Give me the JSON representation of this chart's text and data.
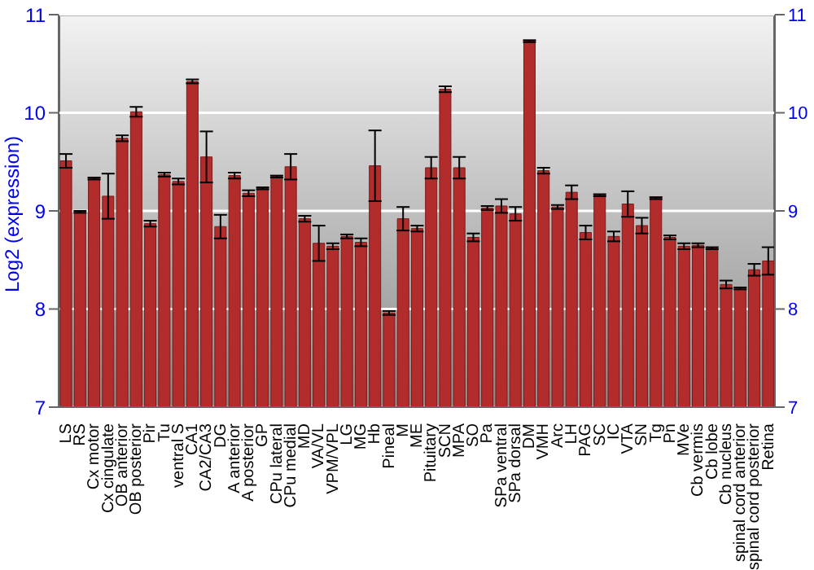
{
  "chart_data": {
    "type": "bar",
    "ylabel": "Log2 (expression)",
    "categories": [
      "LS",
      "RS",
      "Cx motor",
      "Cx cingulate",
      "OB anterior",
      "OB posterior",
      "Pir",
      "Tu",
      "ventral S",
      "CA1",
      "CA2/CA3",
      "DG",
      "A anterior",
      "A posterior",
      "GP",
      "CPu lateral",
      "CPu medial",
      "MD",
      "VA/VL",
      "VPM/VPL",
      "LG",
      "MG",
      "Hb",
      "Pineal",
      "M",
      "ME",
      "Pituitary",
      "SCN",
      "MPA",
      "SO",
      "Pa",
      "SPa ventral",
      "SPa dorsal",
      "DM",
      "VMH",
      "Arc",
      "LH",
      "PAG",
      "SC",
      "IC",
      "VTA",
      "SN",
      "Tg",
      "Pn",
      "MVe",
      "Cb vermis",
      "Cb lobe",
      "Cb nucleus",
      "spinal cord anterior",
      "spinal cord posterior",
      "Retina"
    ],
    "series": [
      {
        "color": "#b22c2c",
        "values": [
          9.51,
          8.99,
          9.33,
          9.15,
          9.74,
          10.01,
          8.87,
          9.37,
          9.3,
          10.32,
          9.55,
          8.84,
          9.36,
          9.18,
          9.23,
          9.35,
          9.45,
          8.92,
          8.67,
          8.64,
          8.74,
          8.68,
          9.46,
          7.96,
          8.92,
          8.82,
          9.44,
          10.24,
          9.44,
          8.73,
          9.03,
          9.05,
          8.97,
          10.73,
          9.41,
          9.04,
          9.19,
          8.78,
          9.16,
          8.74,
          9.07,
          8.85,
          9.13,
          8.73,
          8.64,
          8.65,
          8.62,
          8.25,
          8.21,
          8.4,
          8.49
        ],
        "errors": [
          0.07,
          0.01,
          0.01,
          0.23,
          0.03,
          0.05,
          0.03,
          0.02,
          0.03,
          0.02,
          0.26,
          0.12,
          0.03,
          0.03,
          0.01,
          0.01,
          0.13,
          0.03,
          0.18,
          0.03,
          0.02,
          0.04,
          0.36,
          0.02,
          0.12,
          0.03,
          0.11,
          0.03,
          0.11,
          0.04,
          0.02,
          0.07,
          0.07,
          0.01,
          0.03,
          0.02,
          0.07,
          0.07,
          0.01,
          0.05,
          0.13,
          0.08,
          0.01,
          0.02,
          0.03,
          0.02,
          0.01,
          0.04,
          0.01,
          0.06,
          0.14
        ]
      }
    ],
    "ylim": [
      7,
      11
    ],
    "yticks": [
      7,
      8,
      9,
      10,
      11
    ],
    "y2lim": [
      7,
      11
    ],
    "y2ticks": [
      7,
      8,
      9,
      10,
      11
    ],
    "grid": "y",
    "legend": false
  }
}
